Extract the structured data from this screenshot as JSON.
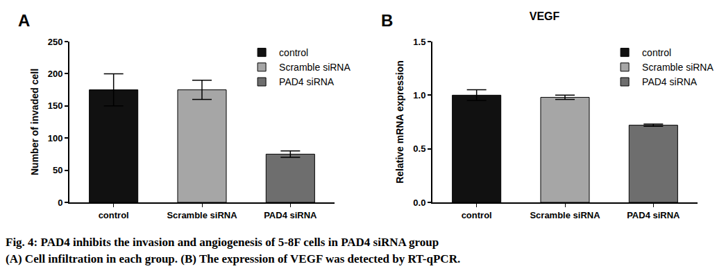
{
  "chart_data": [
    {
      "type": "bar",
      "annotations": [
        "A"
      ],
      "y_label": "Number of invaded cell",
      "categories": [
        "control",
        "Scramble siRNA",
        "PAD4 siRNA"
      ],
      "values": [
        175,
        175,
        75
      ],
      "errors": [
        25,
        15,
        5
      ],
      "colors": [
        "#111111",
        "#a6a6a6",
        "#6e6e6e"
      ],
      "ylim": [
        0,
        250
      ],
      "yticks": [
        0,
        50,
        100,
        150,
        200,
        250
      ],
      "grid": false,
      "legend": "upper right"
    },
    {
      "type": "bar",
      "annotations": [
        "B"
      ],
      "title": "VEGF",
      "y_label": "Relative mRNA expression",
      "categories": [
        "control",
        "Scramble siRNA",
        "PAD4 siRNA"
      ],
      "values": [
        1.0,
        0.98,
        0.72
      ],
      "errors": [
        0.05,
        0.02,
        0.01
      ],
      "colors": [
        "#111111",
        "#a6a6a6",
        "#6e6e6e"
      ],
      "ylim": [
        0,
        1.5
      ],
      "yticks": [
        {
          "value": 0,
          "label": "0.0"
        },
        {
          "value": 0.5,
          "label": "0.5"
        },
        {
          "value": 1,
          "label": "1.0"
        },
        {
          "value": 1.5,
          "label": "1.5"
        }
      ],
      "grid": false,
      "legend": "upper right"
    }
  ],
  "caption": {
    "title": "Fig. 4: PAD4 inhibits the invasion and angiogenesis of 5-8F cells in PAD4 siRNA group",
    "text": "(A) Cell infiltration in each group. (B) The expression of VEGF was detected by RT-qPCR."
  }
}
